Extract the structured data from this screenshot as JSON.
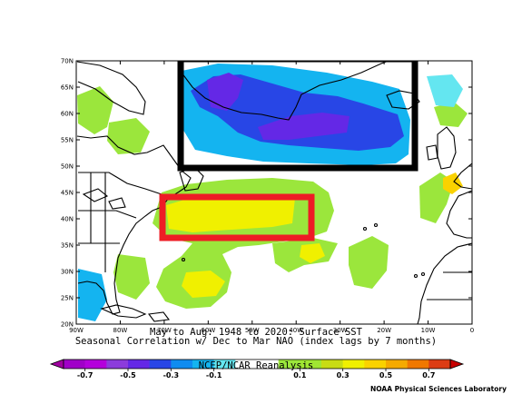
{
  "map": {
    "lat_ticks": [
      "70N",
      "65N",
      "60N",
      "55N",
      "50N",
      "45N",
      "40N",
      "35N",
      "30N",
      "25N",
      "20N"
    ],
    "lon_ticks": [
      "90W",
      "80W",
      "70W",
      "60W",
      "50W",
      "40W",
      "30W",
      "20W",
      "10W",
      "0"
    ],
    "extent": {
      "lon": [
        -90,
        0
      ],
      "lat": [
        20,
        70
      ]
    },
    "highlight_boxes": [
      {
        "name": "subpolar-north-atlantic",
        "color": "#000000",
        "lon": [
          -65,
          -12
        ],
        "lat": [
          50,
          70
        ]
      },
      {
        "name": "gulf-stream-region",
        "color": "#ee1c25",
        "lon": [
          -70,
          -36
        ],
        "lat": [
          36,
          45
        ]
      }
    ],
    "anomaly_regions": {
      "negative": "Labrador Sea to subpolar North Atlantic (purple/blue)",
      "positive": "Gulf Stream region 35N-45N (yellow/green)"
    }
  },
  "caption": {
    "line1": "May to Aug: 1948 to 2020: Surface SST",
    "line2": "Seasonal Correlation w/ Dec to Mar NAO (index lags by 7 months)",
    "line3": "NCEP/NCAR Reanalysis"
  },
  "colorbar": {
    "labels": [
      "-0.7",
      "-0.5",
      "-0.3",
      "-0.1",
      "0.1",
      "0.3",
      "0.5",
      "0.7"
    ],
    "colors": [
      "#a000c8",
      "#b400dc",
      "#8c3cdc",
      "#6428e6",
      "#2846e6",
      "#0f8cf0",
      "#14b4f0",
      "#64e6f0",
      "#ffffff",
      "#ffffff",
      "#9be63c",
      "#a0e632",
      "#c8dc14",
      "#f0f000",
      "#fad200",
      "#f5aa00",
      "#f07800",
      "#dc3c14"
    ],
    "left_arrow_color": "#a000a0",
    "right_arrow_color": "#c80000"
  },
  "credit": "NOAA Physical Sciences Laboratory"
}
